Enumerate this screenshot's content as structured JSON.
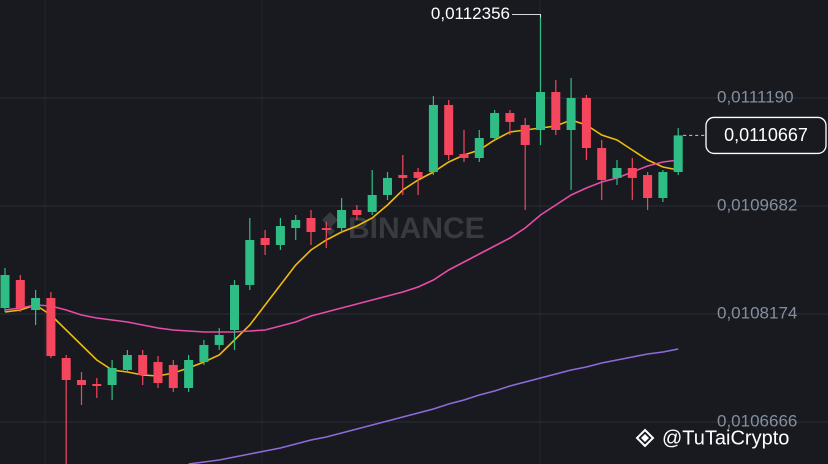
{
  "chart_data": {
    "type": "candlestick",
    "ylim": [
      0.0106079,
      0.0112558
    ],
    "yticks": [
      {
        "value": 0.011119,
        "label": "0,0111190"
      },
      {
        "value": 0.0109682,
        "label": "0,0109682"
      },
      {
        "value": 0.0108174,
        "label": "0,0108174"
      },
      {
        "value": 0.0106666,
        "label": "0,0106666"
      }
    ],
    "grid": true,
    "up_color": "#2ebd85",
    "down_color": "#f6465d",
    "ohlc": {
      "open": [
        0.0108257,
        0.0108648,
        0.0108229,
        0.0108397,
        0.0107559,
        0.0107252,
        0.0107196,
        0.0107182,
        0.0107392,
        0.0107601,
        0.0107503,
        0.0107462,
        0.010714,
        0.0107503,
        0.0107741,
        0.010795,
        0.0108579,
        0.0109235,
        0.0109137,
        0.0109374,
        0.0109514,
        0.0109374,
        0.0109374,
        0.0109626,
        0.0109598,
        0.0109835,
        0.0110114,
        0.0110156,
        0.0110156,
        0.0111092,
        0.0110408,
        0.0110352,
        0.0110631,
        0.011098,
        0.0110813,
        0.0110743,
        0.0111273,
        0.0110743,
        0.011119,
        0.0110491,
        0.0110073,
        0.0110212,
        0.0110114,
        0.0109793,
        0.0110156
      ],
      "high": [
        0.0108816,
        0.0108718,
        0.0108509,
        0.0108481,
        0.0107601,
        0.0107364,
        0.010728,
        0.0107531,
        0.0107671,
        0.0107671,
        0.0107587,
        0.0107531,
        0.0107601,
        0.0107811,
        0.0107978,
        0.0108648,
        0.0109514,
        0.0109347,
        0.0109514,
        0.0109556,
        0.0109626,
        0.0109458,
        0.0109793,
        0.0109696,
        0.0110184,
        0.0110156,
        0.0110394,
        0.0110212,
        0.0111218,
        0.0111162,
        0.0110743,
        0.0110743,
        0.0111022,
        0.0111022,
        0.011091,
        0.0112356,
        0.0111441,
        0.0111469,
        0.0111232,
        0.0110603,
        0.0110324,
        0.0110352,
        0.0110156,
        0.0110184,
        0.0110771
      ],
      "low": [
        0.0108202,
        0.0108202,
        0.010802,
        0.0107559,
        0.0106079,
        0.0106903,
        0.0107001,
        0.0106973,
        0.0107364,
        0.0107182,
        0.010714,
        0.0107085,
        0.0107085,
        0.0107462,
        0.0107671,
        0.0107671,
        0.0108509,
        0.0108997,
        0.0109067,
        0.0109207,
        0.0109137,
        0.0109095,
        0.0109319,
        0.0109486,
        0.0109556,
        0.0109765,
        0.0109835,
        0.0109835,
        0.0110114,
        0.0110324,
        0.0110296,
        0.0110296,
        0.0110603,
        0.0110673,
        0.0109626,
        0.0110533,
        0.0110673,
        0.0109905,
        0.0110324,
        0.0109765,
        0.0109975,
        0.0109765,
        0.0109626,
        0.0109737,
        0.0110114
      ],
      "close": [
        0.0108718,
        0.0108257,
        0.0108397,
        0.0107587,
        0.0107252,
        0.0107182,
        0.0107168,
        0.010742,
        0.0107601,
        0.0107322,
        0.010721,
        0.010714,
        0.0107531,
        0.0107741,
        0.010788,
        0.0108579,
        0.0109207,
        0.0109137,
        0.0109402,
        0.0109486,
        0.0109319,
        0.0109347,
        0.0109626,
        0.0109556,
        0.0109835,
        0.0110073,
        0.0110073,
        0.0110073,
        0.0111092,
        0.0110394,
        0.0110352,
        0.0110631,
        0.011098,
        0.0110855,
        0.0110533,
        0.0111273,
        0.0110743,
        0.011119,
        0.0110491,
        0.0110045,
        0.0110212,
        0.0110073,
        0.0109793,
        0.0110156,
        0.0110667
      ]
    },
    "series": [
      {
        "color": "#f0b90b",
        "values": [
          0.0108202,
          0.0108229,
          0.0108299,
          0.010816,
          0.010795,
          0.0107741,
          0.0107531,
          0.0107392,
          0.0107364,
          0.0107322,
          0.0107308,
          0.010735,
          0.010742,
          0.0107503,
          0.0107601,
          0.0107811,
          0.010802,
          0.0108299,
          0.0108579,
          0.0108858,
          0.0109067,
          0.0109207,
          0.0109319,
          0.0109402,
          0.0109514,
          0.0109696,
          0.0109905,
          0.0110045,
          0.0110156,
          0.0110296,
          0.0110394,
          0.0110464,
          0.0110603,
          0.0110715,
          0.0110743,
          0.0110771,
          0.0110799,
          0.0110882,
          0.0110813,
          0.0110673,
          0.0110603,
          0.0110464,
          0.0110324,
          0.0110226,
          0.0110184
        ]
      },
      {
        "color": "#e84ba8",
        "values": [
          0.0108229,
          0.0108257,
          0.0108299,
          0.0108285,
          0.0108229,
          0.010816,
          0.0108118,
          0.010809,
          0.0108062,
          0.010802,
          0.0107978,
          0.010795,
          0.0107936,
          0.0107922,
          0.0107922,
          0.0107922,
          0.0107936,
          0.010795,
          0.0108006,
          0.0108062,
          0.0108146,
          0.0108202,
          0.0108257,
          0.0108313,
          0.0108369,
          0.0108425,
          0.0108481,
          0.0108551,
          0.0108648,
          0.0108788,
          0.01089,
          0.0109011,
          0.0109123,
          0.0109235,
          0.0109374,
          0.0109556,
          0.0109696,
          0.0109835,
          0.0109933,
          0.0110017,
          0.0110073,
          0.0110156,
          0.011024,
          0.0110296,
          0.0110324
        ]
      },
      {
        "color": "#8e6bd8",
        "values": [
          null,
          null,
          null,
          null,
          null,
          null,
          null,
          null,
          null,
          null,
          null,
          null,
          0.0106079,
          0.0106107,
          0.0106135,
          0.0106177,
          0.0106219,
          0.0106261,
          0.0106303,
          0.0106358,
          0.0106414,
          0.0106456,
          0.0106512,
          0.0106568,
          0.0106624,
          0.010668,
          0.0106735,
          0.0106791,
          0.0106847,
          0.0106917,
          0.0106973,
          0.0107043,
          0.0107098,
          0.0107168,
          0.0107224,
          0.010728,
          0.0107336,
          0.0107392,
          0.0107434,
          0.0107489,
          0.0107531,
          0.0107573,
          0.0107615,
          0.0107643,
          0.0107685
        ]
      }
    ],
    "annotations": [
      {
        "value": 0.0112356,
        "label": "0,0112356"
      }
    ],
    "last_price": {
      "value": 0.0110667,
      "label": "0,0110667"
    },
    "watermark": "BINANCE",
    "credit": "@TuTaiCrypto"
  }
}
